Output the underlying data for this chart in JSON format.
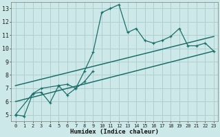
{
  "xlabel": "Humidex (Indice chaleur)",
  "bg_color": "#cce8e8",
  "grid_color": "#b0cece",
  "line_color": "#1a6e6a",
  "xlim": [
    -0.5,
    23.5
  ],
  "ylim": [
    4.5,
    13.5
  ],
  "xticks": [
    0,
    1,
    2,
    3,
    4,
    5,
    6,
    7,
    8,
    9,
    10,
    11,
    12,
    13,
    14,
    15,
    16,
    17,
    18,
    19,
    20,
    21,
    22,
    23
  ],
  "yticks": [
    5,
    6,
    7,
    8,
    9,
    10,
    11,
    12,
    13
  ],
  "line1_x": [
    0,
    1,
    2,
    3,
    4,
    5,
    6,
    7,
    8,
    9,
    10,
    11,
    12,
    13,
    14,
    15,
    16,
    17,
    18,
    19,
    20,
    21,
    22,
    23
  ],
  "line1_y": [
    5.0,
    4.9,
    6.6,
    6.7,
    5.9,
    7.2,
    7.3,
    7.0,
    8.3,
    9.7,
    12.7,
    13.0,
    13.3,
    11.2,
    11.5,
    10.6,
    10.4,
    10.6,
    10.9,
    11.5,
    10.2,
    10.2,
    10.4,
    9.8
  ],
  "line2_x": [
    0,
    2,
    3,
    5,
    6,
    7,
    8,
    9
  ],
  "line2_y": [
    5.0,
    6.6,
    7.0,
    7.2,
    6.5,
    7.0,
    7.5,
    8.3
  ],
  "line3_x": [
    0,
    23
  ],
  "line3_y": [
    6.0,
    9.8
  ],
  "line4_x": [
    0,
    23
  ],
  "line4_y": [
    7.2,
    10.9
  ]
}
